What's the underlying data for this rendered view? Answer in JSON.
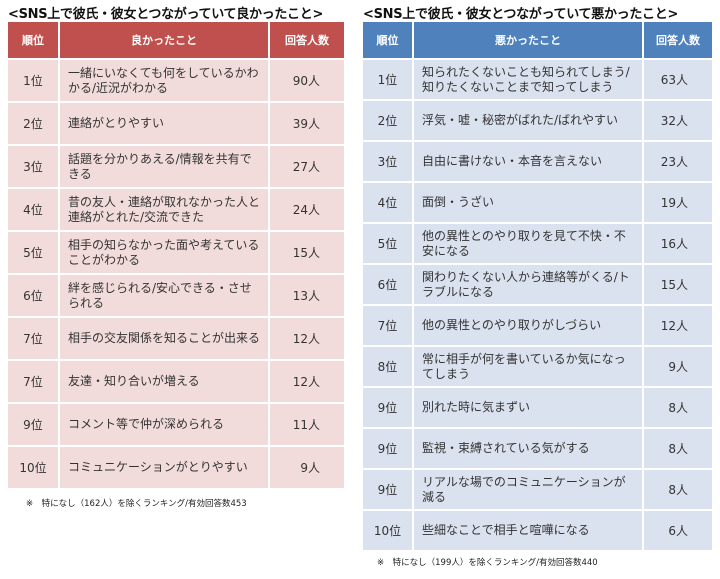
{
  "good": {
    "title": "<SNS上で彼氏・彼女とつながっていて良かったこと>",
    "headers": {
      "rank": "順位",
      "item": "良かったこと",
      "count": "回答人数"
    },
    "rows": [
      {
        "rank": "1位",
        "item": "一緒にいなくても何をしているかわかる/近況がわかる",
        "count": "90人"
      },
      {
        "rank": "2位",
        "item": "連絡がとりやすい",
        "count": "39人"
      },
      {
        "rank": "3位",
        "item": "話題を分かりあえる/情報を共有できる",
        "count": "27人"
      },
      {
        "rank": "4位",
        "item": "昔の友人・連絡が取れなかった人と連絡がとれた/交流できた",
        "count": "24人"
      },
      {
        "rank": "5位",
        "item": "相手の知らなかった面や考えていることがわかる",
        "count": "15人"
      },
      {
        "rank": "6位",
        "item": "絆を感じられる/安心できる・させられる",
        "count": "13人"
      },
      {
        "rank": "7位",
        "item": "相手の交友関係を知ることが出来る",
        "count": "12人"
      },
      {
        "rank": "7位",
        "item": "友達・知り合いが増える",
        "count": "12人"
      },
      {
        "rank": "9位",
        "item": "コメント等で仲が深められる",
        "count": "11人"
      },
      {
        "rank": "10位",
        "item": "コミュニケーションがとりやすい",
        "count": "9人"
      }
    ],
    "note": "※　特になし（162人）を除くランキング/有効回答数453"
  },
  "bad": {
    "title": "<SNS上で彼氏・彼女とつながっていて悪かったこと>",
    "headers": {
      "rank": "順位",
      "item": "悪かったこと",
      "count": "回答人数"
    },
    "rows": [
      {
        "rank": "1位",
        "item": "知られたくないことも知られてしまう/知りたくないことまで知ってしまう",
        "count": "63人"
      },
      {
        "rank": "2位",
        "item": "浮気・嘘・秘密がばれた/ばれやすい",
        "count": "32人"
      },
      {
        "rank": "3位",
        "item": "自由に書けない・本音を言えない",
        "count": "23人"
      },
      {
        "rank": "4位",
        "item": "面倒・うざい",
        "count": "19人"
      },
      {
        "rank": "5位",
        "item": "他の異性とのやり取りを見て不快・不安になる",
        "count": "16人"
      },
      {
        "rank": "6位",
        "item": "関わりたくない人から連絡等がくる/トラブルになる",
        "count": "15人"
      },
      {
        "rank": "7位",
        "item": "他の異性とのやり取りがしづらい",
        "count": "12人"
      },
      {
        "rank": "8位",
        "item": "常に相手が何を書いているか気になってしまう",
        "count": "9人"
      },
      {
        "rank": "9位",
        "item": "別れた時に気まずい",
        "count": "8人"
      },
      {
        "rank": "9位",
        "item": "監視・束縛されている気がする",
        "count": "8人"
      },
      {
        "rank": "9位",
        "item": "リアルな場でのコミュニケーションが減る",
        "count": "8人"
      },
      {
        "rank": "10位",
        "item": "些細なことで相手と喧嘩になる",
        "count": "6人"
      }
    ],
    "note": "※　特になし（199人）を除くランキング/有効回答数440"
  }
}
